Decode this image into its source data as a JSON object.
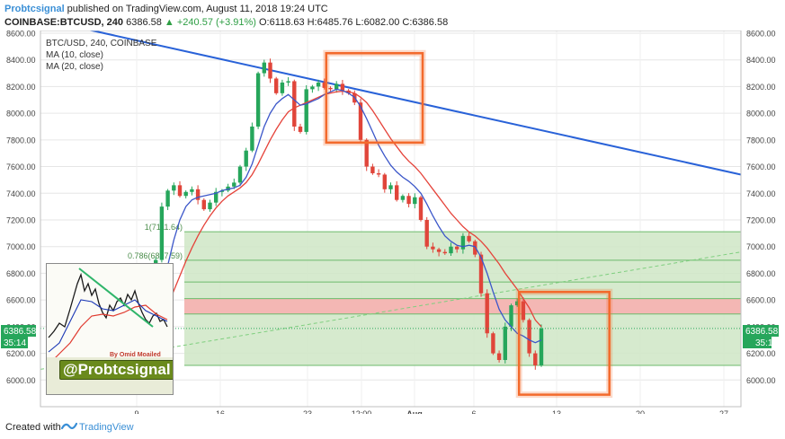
{
  "header": {
    "brand": "Probtcsignal",
    "published_text": " published on TradingView.com, August 11, 2018 19:24 UTC",
    "symbol": "COINBASE:BTCUSD, 240",
    "price": "6386.58",
    "change": "▲ +240.57 (+3.91%)",
    "ohlc": "O:6118.63 H:6485.76 L:6082.00 C:6386.58"
  },
  "legend": {
    "title": "BTC/USD, 240, COINBASE",
    "ma10": "MA (10, close)",
    "ma20": "MA (20, close)"
  },
  "price_badges": {
    "left_price": "6386.58",
    "left_timer": "35:14",
    "right_price": "6386.58",
    "right_timer": "35:14"
  },
  "footer": {
    "created": "Created with",
    "brand": "TradingView"
  },
  "inset": {
    "author": "By Omid Moailed",
    "handle": "@Probtcsignal"
  },
  "colors": {
    "up": "#26a65b",
    "down": "#e0453a",
    "ma10": "#3b56c9",
    "ma20": "#e5433a",
    "trendline": "#2962d8",
    "fib_zone": "#cfe6c6",
    "resistance_zone": "#f7b1b1",
    "highlight_box": "#f36a2c"
  },
  "chart_data": {
    "type": "candlestick",
    "title": "BTC/USD, 240, COINBASE",
    "ylim": [
      5800,
      8620
    ],
    "y_ticks": [
      6000,
      6200,
      6400,
      6600,
      6800,
      7000,
      7200,
      7400,
      7600,
      7800,
      8000,
      8200,
      8400,
      8600
    ],
    "x_tick_labels": [
      "9",
      "16",
      "23",
      "12:00",
      "Aug",
      "6",
      "13",
      "20",
      "27"
    ],
    "fib_levels": [
      {
        "label": "1(7111.64)",
        "value": 7111.64
      },
      {
        "label": "0.786(6897.59)",
        "value": 6897.59
      },
      {
        "value": 6735
      },
      {
        "value": 6610
      },
      {
        "value": 6495
      },
      {
        "value": 6110
      }
    ],
    "resistance_zone": [
      6495,
      6610
    ],
    "closes": [
      6250,
      6230,
      6210,
      6190,
      6170,
      6180,
      6200,
      6190,
      6210,
      6240,
      6260,
      6280,
      6300,
      6350,
      6420,
      6600,
      6900,
      7300,
      7420,
      7460,
      7380,
      7410,
      7430,
      7350,
      7280,
      7330,
      7410,
      7420,
      7450,
      7480,
      7600,
      7720,
      7900,
      8300,
      8380,
      8260,
      8150,
      8230,
      8240,
      7900,
      7860,
      8180,
      8200,
      8230,
      8190,
      8180,
      8220,
      8170,
      8150,
      8080,
      7800,
      7600,
      7550,
      7540,
      7430,
      7460,
      7350,
      7380,
      7320,
      7370,
      7200,
      7000,
      6980,
      6960,
      6950,
      7000,
      6980,
      7080,
      7040,
      6940,
      6650,
      6350,
      6200,
      6150,
      6400,
      6560,
      6590,
      6450,
      6200,
      6110,
      6386.58
    ],
    "ma10": [
      6300,
      6280,
      6260,
      6240,
      6220,
      6200,
      6190,
      6185,
      6190,
      6200,
      6210,
      6230,
      6250,
      6280,
      6320,
      6400,
      6520,
      6680,
      6860,
      7050,
      7200,
      7300,
      7350,
      7370,
      7380,
      7390,
      7400,
      7420,
      7430,
      7440,
      7460,
      7520,
      7620,
      7760,
      7900,
      8000,
      8070,
      8110,
      8140,
      8100,
      8060,
      8070,
      8090,
      8110,
      8140,
      8160,
      8180,
      8170,
      8150,
      8120,
      8050,
      7960,
      7860,
      7760,
      7680,
      7610,
      7560,
      7520,
      7490,
      7450,
      7400,
      7320,
      7230,
      7150,
      7080,
      7040,
      7010,
      7000,
      7010,
      7000,
      6920,
      6800,
      6660,
      6530,
      6450,
      6400,
      6350,
      6330,
      6300,
      6280,
      6300
    ],
    "ma20": [
      6340,
      6320,
      6300,
      6280,
      6260,
      6240,
      6225,
      6215,
      6210,
      6205,
      6210,
      6215,
      6220,
      6240,
      6260,
      6300,
      6370,
      6460,
      6560,
      6670,
      6780,
      6890,
      6990,
      7080,
      7160,
      7230,
      7290,
      7340,
      7380,
      7410,
      7440,
      7480,
      7540,
      7620,
      7710,
      7800,
      7880,
      7950,
      8010,
      8040,
      8060,
      8080,
      8100,
      8120,
      8140,
      8150,
      8160,
      8165,
      8160,
      8150,
      8120,
      8080,
      8020,
      7950,
      7880,
      7810,
      7750,
      7690,
      7640,
      7600,
      7550,
      7490,
      7430,
      7370,
      7310,
      7250,
      7200,
      7150,
      7110,
      7080,
      7040,
      6990,
      6930,
      6870,
      6800,
      6740,
      6680,
      6610,
      6540,
      6450,
      6400
    ],
    "trendline": {
      "start": {
        "x_index": 10,
        "value": 8640
      },
      "end": {
        "x_index": 177,
        "value": 7540
      }
    },
    "dashed_trendline": {
      "start": {
        "x_index": 0,
        "value": 6080
      },
      "end": {
        "x_index": 177,
        "value": 6960
      }
    },
    "current_price": 6386.58
  }
}
